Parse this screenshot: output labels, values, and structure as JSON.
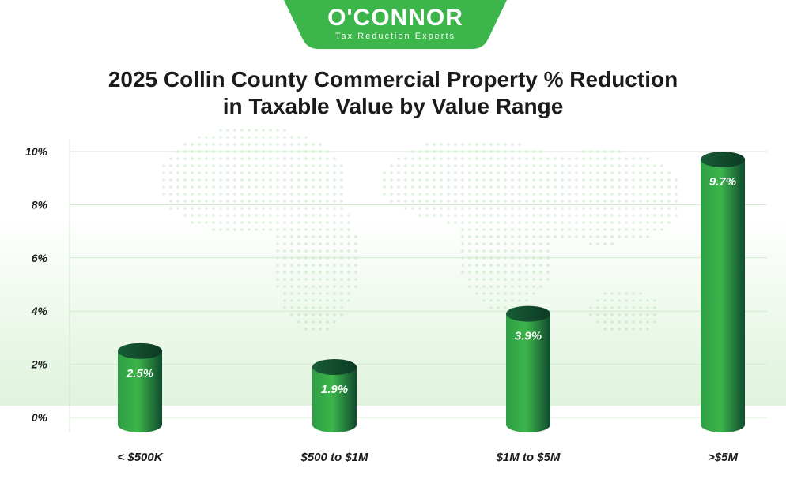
{
  "logo": {
    "brand": "O'CONNOR",
    "tagline": "Tax Reduction Experts"
  },
  "title_lines": [
    "2025 Collin County Commercial Property % Reduction",
    "in Taxable Value by Value Range"
  ],
  "colors": {
    "bar_light": "#3cb54a",
    "bar_dark": "#0f4a2e",
    "logo_green": "#3cb54a",
    "grid": "#cfe9cc"
  },
  "chart_data": {
    "type": "bar",
    "title": "2025 Collin County Commercial Property % Reduction in Taxable Value by Value Range",
    "xlabel": "",
    "ylabel": "",
    "categories": [
      "< $500K",
      "$500 to $1M",
      "$1M to $5M",
      ">$5M"
    ],
    "values": [
      2.5,
      1.9,
      3.9,
      9.7
    ],
    "value_labels": [
      "2.5%",
      "1.9%",
      "3.9%",
      "9.7%"
    ],
    "ylim": [
      0,
      10
    ],
    "yticks": [
      0,
      2,
      4,
      6,
      8,
      10
    ],
    "ytick_labels": [
      "0%",
      "2%",
      "4%",
      "6%",
      "8%",
      "10%"
    ],
    "grid": true,
    "legend": "none"
  }
}
